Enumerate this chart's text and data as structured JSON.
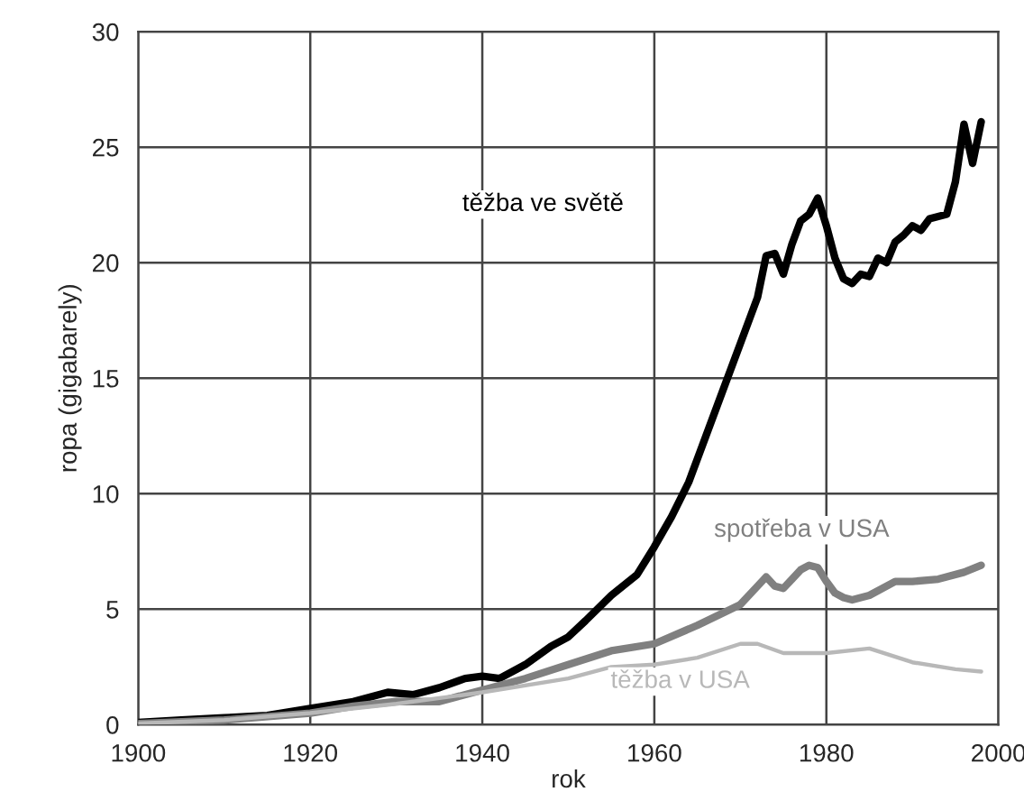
{
  "chart_data": {
    "type": "line",
    "xlabel": "rok",
    "ylabel": "ropa (gigabarely)",
    "xlim": [
      1900,
      2000
    ],
    "xticks": [
      1900,
      1920,
      1940,
      1960,
      1980,
      2000
    ],
    "ylim": [
      0,
      30
    ],
    "yticks": [
      0,
      5,
      10,
      15,
      20,
      25,
      30
    ],
    "grid": true,
    "legend": false,
    "marker": "none",
    "line_style": "solid",
    "series": [
      {
        "name": "těžba ve světě",
        "color": "#000000",
        "x": [
          1900,
          1905,
          1910,
          1915,
          1920,
          1925,
          1929,
          1932,
          1935,
          1938,
          1940,
          1942,
          1945,
          1948,
          1950,
          1952,
          1955,
          1958,
          1960,
          1962,
          1964,
          1966,
          1968,
          1970,
          1972,
          1973,
          1974,
          1975,
          1976,
          1977,
          1978,
          1979,
          1980,
          1981,
          1982,
          1983,
          1984,
          1985,
          1986,
          1987,
          1988,
          1989,
          1990,
          1991,
          1992,
          1993,
          1994,
          1995,
          1996,
          1997,
          1998
        ],
        "values": [
          0.1,
          0.2,
          0.3,
          0.4,
          0.7,
          1.0,
          1.4,
          1.3,
          1.6,
          2.0,
          2.1,
          2.0,
          2.6,
          3.4,
          3.8,
          4.5,
          5.6,
          6.5,
          7.7,
          9.0,
          10.5,
          12.5,
          14.5,
          16.5,
          18.5,
          20.3,
          20.4,
          19.5,
          20.8,
          21.8,
          22.1,
          22.8,
          21.6,
          20.2,
          19.3,
          19.1,
          19.5,
          19.4,
          20.2,
          20.0,
          20.9,
          21.2,
          21.6,
          21.4,
          21.9,
          22.0,
          22.1,
          23.5,
          26.0,
          24.3,
          26.1
        ]
      },
      {
        "name": "spotřeba v USA",
        "color": "#808080",
        "x": [
          1900,
          1910,
          1920,
          1925,
          1930,
          1935,
          1940,
          1945,
          1950,
          1955,
          1960,
          1965,
          1970,
          1972,
          1973,
          1974,
          1975,
          1976,
          1977,
          1978,
          1979,
          1980,
          1981,
          1982,
          1983,
          1985,
          1988,
          1990,
          1993,
          1996,
          1998
        ],
        "values": [
          0.05,
          0.2,
          0.5,
          0.8,
          1.0,
          1.0,
          1.5,
          2.0,
          2.6,
          3.2,
          3.5,
          4.3,
          5.2,
          6.0,
          6.4,
          6.0,
          5.9,
          6.3,
          6.7,
          6.9,
          6.8,
          6.2,
          5.7,
          5.5,
          5.4,
          5.6,
          6.2,
          6.2,
          6.3,
          6.6,
          6.9
        ]
      },
      {
        "name": "těžba v USA",
        "color": "#b8b8b8",
        "x": [
          1900,
          1910,
          1920,
          1930,
          1940,
          1950,
          1955,
          1960,
          1965,
          1970,
          1972,
          1975,
          1980,
          1985,
          1990,
          1995,
          1998
        ],
        "values": [
          0.05,
          0.2,
          0.5,
          0.9,
          1.4,
          2.0,
          2.5,
          2.6,
          2.9,
          3.5,
          3.5,
          3.1,
          3.1,
          3.3,
          2.7,
          2.4,
          2.3
        ]
      }
    ]
  }
}
